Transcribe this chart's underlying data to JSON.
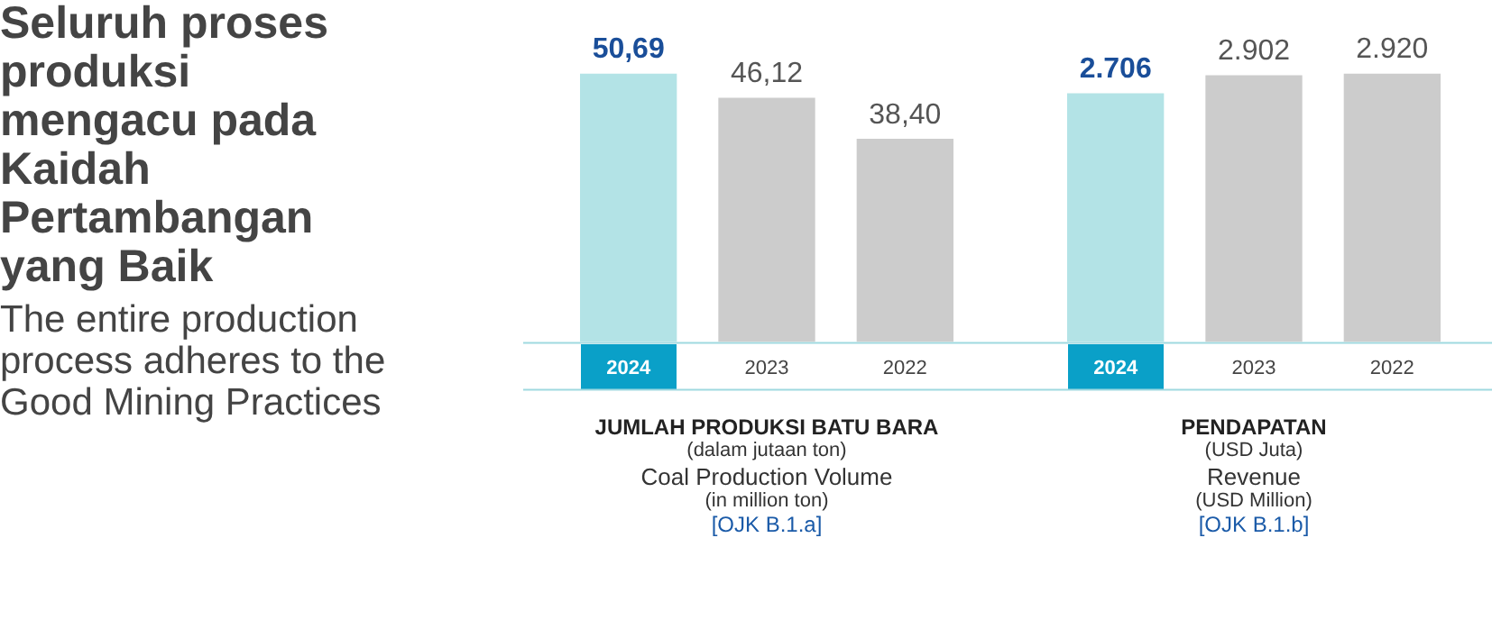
{
  "chart_data": [
    {
      "type": "other",
      "title": "Seluruh proses produksi mengacu pada Kaidah Pertambangan yang Baik",
      "subtitle": "The entire production process adheres to the Good Mining Practices"
    },
    {
      "type": "bar",
      "categories": [
        "2024",
        "2023",
        "2022"
      ],
      "values": [
        50.69,
        46.12,
        38.4
      ],
      "value_labels": [
        "50,69",
        "46,12",
        "38,40"
      ],
      "colors": [
        "#b3e3e6",
        "#cccccc",
        "#cccccc"
      ],
      "tick_labels": "x",
      "grid": false,
      "legend": false,
      "xlabel": "JUMLAH PRODUKSI BATU BARA",
      "annotations": [
        "(dalam jutaan ton)",
        "Coal Production Volume",
        "(in million ton)",
        "[OJK B.1.a]"
      ]
    },
    {
      "type": "bar",
      "categories": [
        "2024",
        "2023",
        "2022"
      ],
      "values": [
        2706,
        2902,
        2920
      ],
      "value_labels": [
        "2.706",
        "2.902",
        "2.920"
      ],
      "colors": [
        "#b3e3e6",
        "#cccccc",
        "#cccccc"
      ],
      "tick_labels": "x",
      "grid": false,
      "legend": false,
      "xlabel": "PENDAPATAN",
      "annotations": [
        "(USD Juta)",
        "Revenue",
        "(USD Million)",
        "[OJK B.1.b]"
      ]
    }
  ]
}
